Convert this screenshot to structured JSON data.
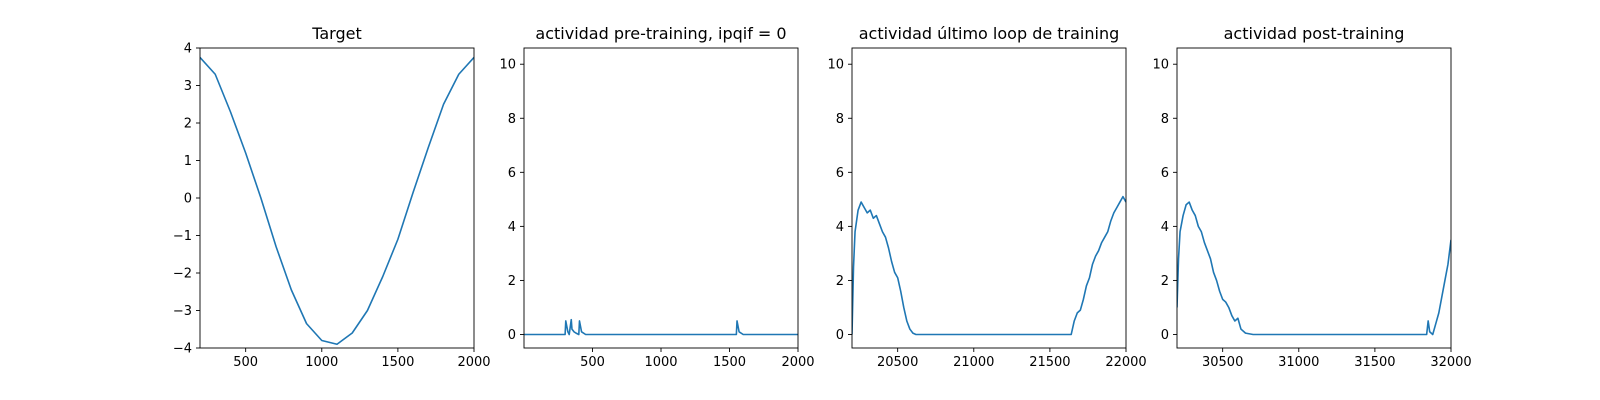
{
  "chart_data": [
    {
      "type": "line",
      "title": "Target",
      "xlabel": "",
      "ylabel": "",
      "xlim": [
        200,
        2000
      ],
      "ylim": [
        -4,
        4
      ],
      "xticks": [
        500,
        1000,
        1500,
        2000
      ],
      "yticks": [
        -4,
        -3,
        -2,
        -1,
        0,
        1,
        2,
        3,
        4
      ],
      "ytick_labels": [
        "−4",
        "−3",
        "−2",
        "−1",
        "0",
        "1",
        "2",
        "3",
        "4"
      ],
      "grid": false,
      "series": [
        {
          "color": "#1f77b4",
          "x": [
            200,
            300,
            400,
            500,
            600,
            700,
            800,
            900,
            1000,
            1100,
            1200,
            1300,
            1400,
            1500,
            1600,
            1700,
            1800,
            1900,
            2000
          ],
          "y": [
            3.75,
            3.3,
            2.3,
            1.2,
            0.0,
            -1.3,
            -2.45,
            -3.35,
            -3.8,
            -3.9,
            -3.6,
            -3.0,
            -2.1,
            -1.1,
            0.15,
            1.35,
            2.5,
            3.3,
            3.75
          ]
        }
      ]
    },
    {
      "type": "line",
      "title": "actividad pre-training, ipqif = 0",
      "xlabel": "",
      "ylabel": "",
      "xlim": [
        0,
        2000
      ],
      "ylim": [
        -0.5,
        10.6
      ],
      "xticks": [
        500,
        1000,
        1500,
        2000
      ],
      "yticks": [
        0,
        2,
        4,
        6,
        8,
        10
      ],
      "grid": false,
      "series": [
        {
          "color": "#1f77b4",
          "x": [
            0,
            300,
            305,
            320,
            330,
            345,
            350,
            365,
            380,
            400,
            405,
            420,
            450,
            1550,
            1555,
            1570,
            1600,
            2000
          ],
          "y": [
            0,
            0,
            0.5,
            0.1,
            0,
            0.55,
            0.2,
            0.1,
            0.05,
            0,
            0.5,
            0.1,
            0,
            0,
            0.5,
            0.1,
            0,
            0
          ]
        }
      ]
    },
    {
      "type": "line",
      "title": "actividad último loop de training",
      "xlabel": "",
      "ylabel": "",
      "xlim": [
        20200,
        22000
      ],
      "ylim": [
        -0.5,
        10.6
      ],
      "xticks": [
        20500,
        21000,
        21500,
        22000
      ],
      "yticks": [
        0,
        2,
        4,
        6,
        8,
        10
      ],
      "grid": false,
      "series": [
        {
          "color": "#1f77b4",
          "x": [
            20200,
            20210,
            20220,
            20240,
            20260,
            20280,
            20300,
            20320,
            20340,
            20360,
            20380,
            20400,
            20420,
            20440,
            20460,
            20480,
            20500,
            20520,
            20540,
            20560,
            20580,
            20600,
            20620,
            20650,
            21000,
            21640,
            21660,
            21680,
            21700,
            21720,
            21740,
            21760,
            21780,
            21800,
            21820,
            21840,
            21860,
            21880,
            21900,
            21920,
            21940,
            21960,
            21980,
            22000
          ],
          "y": [
            0.0,
            2.5,
            3.8,
            4.6,
            4.9,
            4.7,
            4.5,
            4.6,
            4.3,
            4.4,
            4.1,
            3.8,
            3.6,
            3.2,
            2.7,
            2.3,
            2.1,
            1.6,
            1.0,
            0.5,
            0.2,
            0.05,
            0.0,
            0.0,
            0.0,
            0.0,
            0.5,
            0.8,
            0.9,
            1.3,
            1.8,
            2.1,
            2.6,
            2.9,
            3.1,
            3.4,
            3.6,
            3.8,
            4.2,
            4.5,
            4.7,
            4.9,
            5.1,
            4.9
          ]
        }
      ]
    },
    {
      "type": "line",
      "title": "actividad post-training",
      "xlabel": "",
      "ylabel": "",
      "xlim": [
        30200,
        32000
      ],
      "ylim": [
        -0.5,
        10.6
      ],
      "xticks": [
        30500,
        31000,
        31500,
        32000
      ],
      "yticks": [
        0,
        2,
        4,
        6,
        8,
        10
      ],
      "grid": false,
      "series": [
        {
          "color": "#1f77b4",
          "x": [
            30200,
            30210,
            30220,
            30240,
            30260,
            30280,
            30300,
            30320,
            30340,
            30360,
            30380,
            30400,
            30420,
            30440,
            30460,
            30480,
            30500,
            30520,
            30540,
            30560,
            30580,
            30600,
            30620,
            30650,
            30700,
            31000,
            31500,
            31840,
            31850,
            31860,
            31880,
            31900,
            31920,
            31940,
            31960,
            31980,
            32000
          ],
          "y": [
            1.0,
            2.8,
            3.8,
            4.4,
            4.8,
            4.9,
            4.6,
            4.4,
            4.0,
            3.8,
            3.4,
            3.1,
            2.8,
            2.3,
            2.0,
            1.6,
            1.3,
            1.2,
            1.0,
            0.7,
            0.5,
            0.6,
            0.2,
            0.05,
            0.0,
            0.0,
            0.0,
            0.0,
            0.5,
            0.1,
            0.0,
            0.4,
            0.8,
            1.4,
            2.0,
            2.6,
            3.5
          ]
        }
      ]
    }
  ]
}
